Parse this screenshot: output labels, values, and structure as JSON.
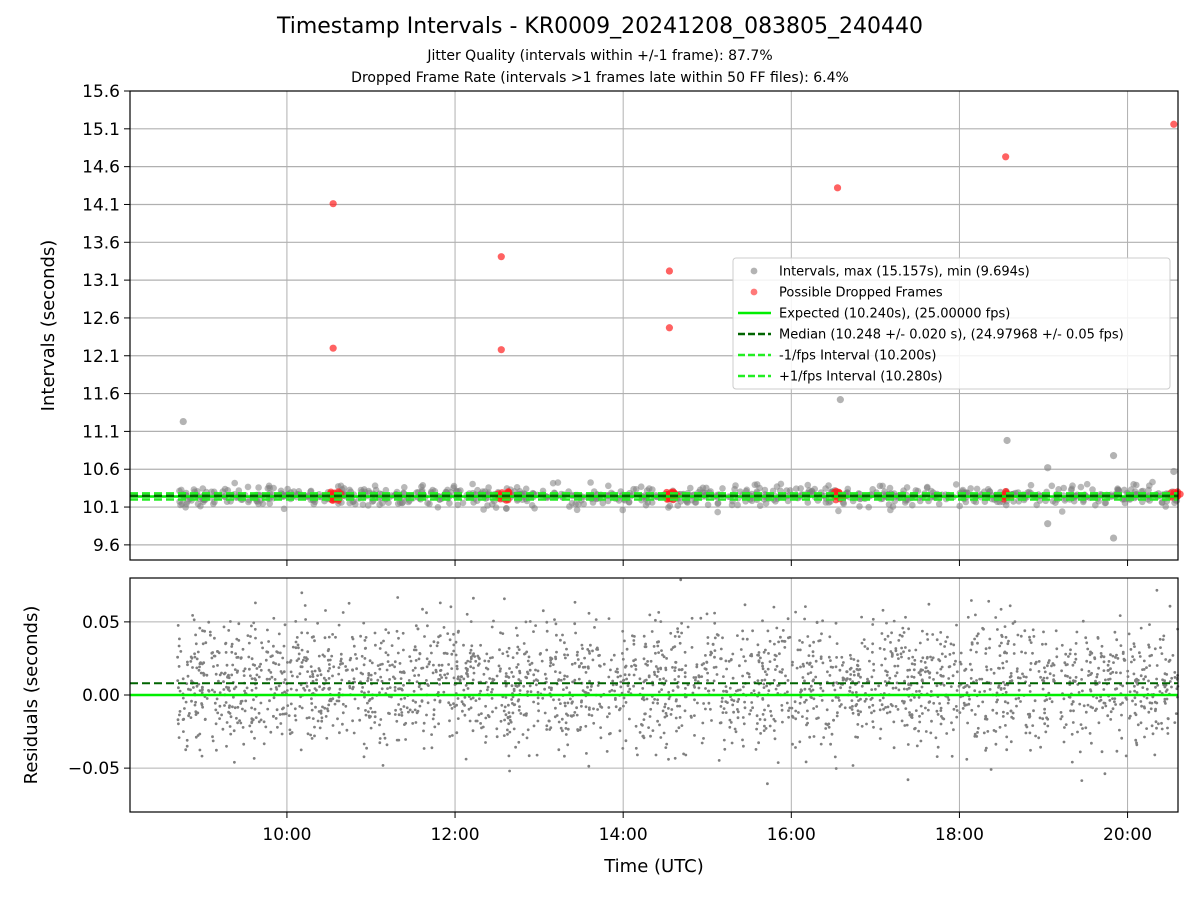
{
  "figure": {
    "title": "Timestamp Intervals - KR0009_20241208_083805_240440",
    "subtitle1": "Jitter Quality (intervals within +/-1 frame): 87.7%",
    "subtitle2": "Dropped Frame Rate (intervals >1 frames late within 50 FF files): 6.4%"
  },
  "colors": {
    "intervals": "#808080",
    "dropped": "#ff2020",
    "expected": "#00ee00",
    "median": "#006400",
    "band": "#22ee22",
    "grid": "#b0b0b0"
  },
  "chart_data": [
    {
      "type": "scatter",
      "ylabel": "Intervals (seconds)",
      "xlabel": "",
      "xlim": [
        "08:08",
        "20:36"
      ],
      "ylim": [
        9.4,
        15.6
      ],
      "yticks": [
        "9.6",
        "10.1",
        "10.6",
        "11.1",
        "11.6",
        "12.1",
        "12.6",
        "13.1",
        "13.6",
        "14.1",
        "14.6",
        "15.1",
        "15.6"
      ],
      "grid": true,
      "legend_position": "right",
      "legend": [
        "Intervals, max (15.157s), min (9.694s)",
        "Possible Dropped Frames",
        "Expected (10.240s), (25.00000 fps)",
        "Median (10.248 +/- 0.020 s), (24.97968 +/- 0.05 fps)",
        "-1/fps Interval (10.200s)",
        "+1/fps Interval (10.280s)"
      ],
      "expected_interval": 10.24,
      "median_interval": 10.248,
      "lower_interval": 10.2,
      "upper_interval": 10.28,
      "interval_outliers": [
        {
          "x": "08:46",
          "y": 11.23
        },
        {
          "x": "16:35",
          "y": 11.52
        },
        {
          "x": "18:34",
          "y": 10.98
        },
        {
          "x": "19:03",
          "y": 10.62
        },
        {
          "x": "19:03",
          "y": 9.88
        },
        {
          "x": "19:50",
          "y": 10.78
        },
        {
          "x": "19:50",
          "y": 9.69
        },
        {
          "x": "20:33",
          "y": 10.57
        }
      ],
      "dropped_frames": [
        {
          "x": "10:33",
          "y": 14.11
        },
        {
          "x": "10:33",
          "y": 12.2
        },
        {
          "x": "12:33",
          "y": 13.41
        },
        {
          "x": "12:33",
          "y": 12.18
        },
        {
          "x": "14:33",
          "y": 13.22
        },
        {
          "x": "14:33",
          "y": 12.47
        },
        {
          "x": "16:33",
          "y": 14.32
        },
        {
          "x": "18:33",
          "y": 14.73
        },
        {
          "x": "20:33",
          "y": 15.16
        }
      ]
    },
    {
      "type": "scatter",
      "ylabel": "Residuals (seconds)",
      "xlabel": "Time (UTC)",
      "xlim": [
        "08:08",
        "20:36"
      ],
      "ylim": [
        -0.08,
        0.08
      ],
      "yticks": [
        "−0.05",
        "0.00",
        "0.05"
      ],
      "xticks": [
        "10:00",
        "12:00",
        "14:00",
        "16:00",
        "18:00",
        "20:00"
      ],
      "grid": true,
      "expected_residual": 0.0,
      "median_residual": 0.008
    }
  ]
}
